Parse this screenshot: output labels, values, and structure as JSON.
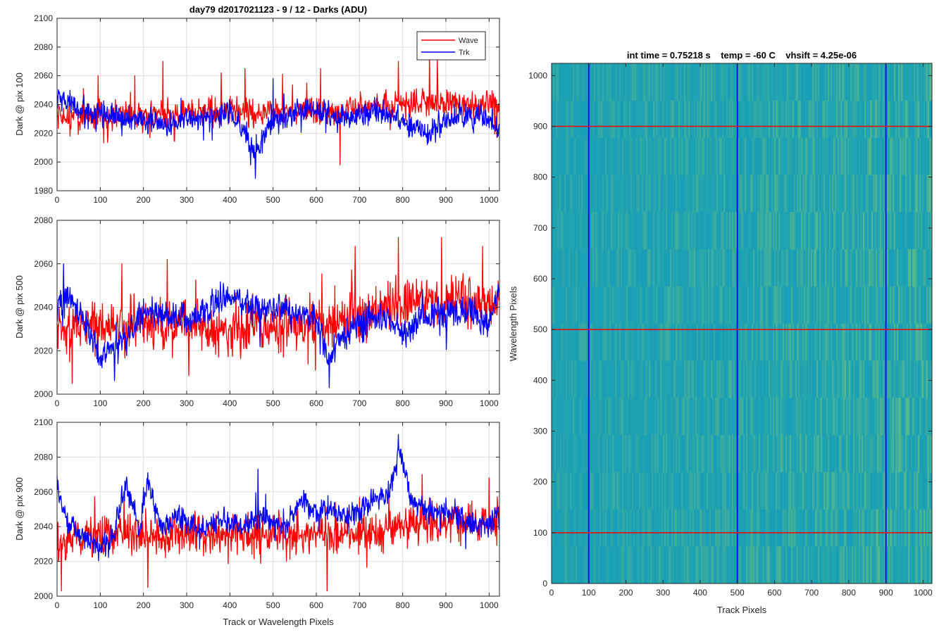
{
  "figure": {
    "legend": {
      "wave_label": "Wave",
      "trk_label": "Trk",
      "placement": "top-right of top panel"
    },
    "colors": {
      "wave": "#ff0000",
      "trk": "#0000ff",
      "grid": "#d9d9d9",
      "axis": "#262626"
    }
  },
  "chart_data": [
    {
      "type": "line",
      "title": "day79 d2017021123 - 9 / 12 - Darks (ADU)",
      "xlabel": "",
      "ylabel": "Dark @ pix 100",
      "xlim": [
        0,
        1024
      ],
      "ylim": [
        1980,
        2100
      ],
      "xticks": [
        "0",
        "100",
        "200",
        "300",
        "400",
        "500",
        "600",
        "700",
        "800",
        "900",
        "1000"
      ],
      "yticks": [
        "1980",
        "2000",
        "2020",
        "2040",
        "2060",
        "2080",
        "2100"
      ],
      "grid": true,
      "legend": "top-right",
      "series": [
        {
          "name": "Wave",
          "color": "#ff0000",
          "n_points": 1024,
          "mean": 2034,
          "noise": 7,
          "baseline": [
            [
              0,
              2030
            ],
            [
              100,
              2032
            ],
            [
              200,
              2033
            ],
            [
              300,
              2034
            ],
            [
              400,
              2034
            ],
            [
              500,
              2034
            ],
            [
              600,
              2035
            ],
            [
              700,
              2038
            ],
            [
              800,
              2040
            ],
            [
              900,
              2040
            ],
            [
              1024,
              2040
            ]
          ],
          "spikes": [
            [
              95,
              2060
            ],
            [
              180,
              2060
            ],
            [
              245,
              2070
            ],
            [
              380,
              2062
            ],
            [
              435,
              2065
            ],
            [
              522,
              2061
            ],
            [
              610,
              2065
            ],
            [
              655,
              1998
            ],
            [
              790,
              2070
            ],
            [
              862,
              2075
            ],
            [
              880,
              2072
            ]
          ]
        },
        {
          "name": "Trk",
          "color": "#0000ff",
          "n_points": 1024,
          "mean": 2034,
          "noise": 6,
          "baseline": [
            [
              0,
              2045
            ],
            [
              40,
              2038
            ],
            [
              100,
              2034
            ],
            [
              150,
              2030
            ],
            [
              200,
              2030
            ],
            [
              250,
              2025
            ],
            [
              300,
              2030
            ],
            [
              350,
              2030
            ],
            [
              400,
              2035
            ],
            [
              440,
              2018
            ],
            [
              460,
              2005
            ],
            [
              490,
              2025
            ],
            [
              550,
              2035
            ],
            [
              600,
              2036
            ],
            [
              650,
              2030
            ],
            [
              700,
              2033
            ],
            [
              750,
              2035
            ],
            [
              800,
              2028
            ],
            [
              860,
              2020
            ],
            [
              900,
              2030
            ],
            [
              960,
              2032
            ],
            [
              1000,
              2030
            ],
            [
              1024,
              2020
            ]
          ],
          "spikes": [
            [
              448,
              1998
            ],
            [
              500,
              2058
            ]
          ]
        }
      ]
    },
    {
      "type": "line",
      "title": "",
      "xlabel": "",
      "ylabel": "Dark @ pix 500",
      "xlim": [
        0,
        1024
      ],
      "ylim": [
        2000,
        2080
      ],
      "xticks": [
        "0",
        "100",
        "200",
        "300",
        "400",
        "500",
        "600",
        "700",
        "800",
        "900",
        "1000"
      ],
      "yticks": [
        "2000",
        "2020",
        "2040",
        "2060",
        "2080"
      ],
      "grid": true,
      "series": [
        {
          "name": "Wave",
          "color": "#ff0000",
          "n_points": 1024,
          "mean": 2033,
          "noise": 8,
          "baseline": [
            [
              0,
              2030
            ],
            [
              100,
              2032
            ],
            [
              200,
              2033
            ],
            [
              300,
              2032
            ],
            [
              400,
              2030
            ],
            [
              500,
              2033
            ],
            [
              600,
              2032
            ],
            [
              700,
              2036
            ],
            [
              800,
              2040
            ],
            [
              900,
              2042
            ],
            [
              1024,
              2040
            ]
          ],
          "spikes": [
            [
              35,
              2005
            ],
            [
              150,
              2060
            ],
            [
              255,
              2062
            ],
            [
              690,
              2068
            ],
            [
              790,
              2072
            ],
            [
              890,
              2072
            ],
            [
              985,
              2068
            ]
          ]
        },
        {
          "name": "Trk",
          "color": "#0000ff",
          "n_points": 1024,
          "mean": 2035,
          "noise": 5,
          "baseline": [
            [
              0,
              2040
            ],
            [
              30,
              2045
            ],
            [
              60,
              2035
            ],
            [
              100,
              2018
            ],
            [
              130,
              2020
            ],
            [
              160,
              2025
            ],
            [
              200,
              2038
            ],
            [
              250,
              2038
            ],
            [
              300,
              2035
            ],
            [
              350,
              2040
            ],
            [
              400,
              2045
            ],
            [
              450,
              2040
            ],
            [
              500,
              2040
            ],
            [
              550,
              2038
            ],
            [
              600,
              2035
            ],
            [
              630,
              2015
            ],
            [
              650,
              2025
            ],
            [
              700,
              2033
            ],
            [
              750,
              2036
            ],
            [
              800,
              2028
            ],
            [
              850,
              2036
            ],
            [
              900,
              2038
            ],
            [
              950,
              2040
            ],
            [
              1000,
              2032
            ],
            [
              1024,
              2050
            ]
          ],
          "spikes": [
            [
              15,
              2060
            ],
            [
              630,
              2003
            ]
          ]
        }
      ]
    },
    {
      "type": "line",
      "title": "",
      "xlabel": "Track or Wavelength Pixels",
      "ylabel": "Dark @ pix 900",
      "xlim": [
        0,
        1024
      ],
      "ylim": [
        2000,
        2100
      ],
      "xticks": [
        "0",
        "100",
        "200",
        "300",
        "400",
        "500",
        "600",
        "700",
        "800",
        "900",
        "1000"
      ],
      "yticks": [
        "2000",
        "2020",
        "2040",
        "2060",
        "2080",
        "2100"
      ],
      "grid": true,
      "series": [
        {
          "name": "Wave",
          "color": "#ff0000",
          "n_points": 1024,
          "mean": 2036,
          "noise": 8,
          "baseline": [
            [
              0,
              2033
            ],
            [
              100,
              2035
            ],
            [
              200,
              2036
            ],
            [
              300,
              2036
            ],
            [
              400,
              2036
            ],
            [
              500,
              2036
            ],
            [
              600,
              2035
            ],
            [
              700,
              2036
            ],
            [
              800,
              2040
            ],
            [
              900,
              2042
            ],
            [
              1000,
              2042
            ],
            [
              1024,
              2045
            ]
          ],
          "spikes": [
            [
              10,
              2003
            ],
            [
              210,
              2005
            ],
            [
              625,
              2003
            ],
            [
              845,
              2070
            ],
            [
              1000,
              2068
            ]
          ]
        },
        {
          "name": "Trk",
          "color": "#0000ff",
          "n_points": 1024,
          "mean": 2045,
          "noise": 5,
          "baseline": [
            [
              0,
              2065
            ],
            [
              20,
              2045
            ],
            [
              60,
              2035
            ],
            [
              100,
              2028
            ],
            [
              130,
              2035
            ],
            [
              160,
              2065
            ],
            [
              190,
              2040
            ],
            [
              210,
              2065
            ],
            [
              240,
              2040
            ],
            [
              280,
              2045
            ],
            [
              330,
              2038
            ],
            [
              380,
              2045
            ],
            [
              430,
              2040
            ],
            [
              480,
              2045
            ],
            [
              530,
              2040
            ],
            [
              560,
              2055
            ],
            [
              600,
              2050
            ],
            [
              640,
              2050
            ],
            [
              670,
              2048
            ],
            [
              700,
              2048
            ],
            [
              740,
              2056
            ],
            [
              770,
              2060
            ],
            [
              795,
              2085
            ],
            [
              820,
              2055
            ],
            [
              860,
              2048
            ],
            [
              900,
              2050
            ],
            [
              950,
              2042
            ],
            [
              1000,
              2040
            ],
            [
              1024,
              2050
            ]
          ],
          "spikes": [
            [
              790,
              2093
            ],
            [
              465,
              2073
            ]
          ]
        }
      ]
    },
    {
      "type": "heatmap",
      "title": "int time = 0.75218 s    temp = -60 C    vhsift = 4.25e-06",
      "xlabel": "Track Pixels",
      "ylabel": "Wavelength Pixels",
      "xlim": [
        0,
        1024
      ],
      "ylim": [
        0,
        1024
      ],
      "xticks": [
        "0",
        "100",
        "200",
        "300",
        "400",
        "500",
        "600",
        "700",
        "800",
        "900",
        "1000"
      ],
      "yticks": [
        "0",
        "100",
        "200",
        "300",
        "400",
        "500",
        "600",
        "700",
        "800",
        "900",
        "1000"
      ],
      "colormap": [
        "#1a9fb8",
        "#2bb19e",
        "#80c96b"
      ],
      "vertical_markers": {
        "color": "#0000ff",
        "x": [
          100,
          500,
          900
        ]
      },
      "horizontal_markers": {
        "color": "#ff0000",
        "y": [
          100,
          500,
          900
        ]
      }
    }
  ]
}
